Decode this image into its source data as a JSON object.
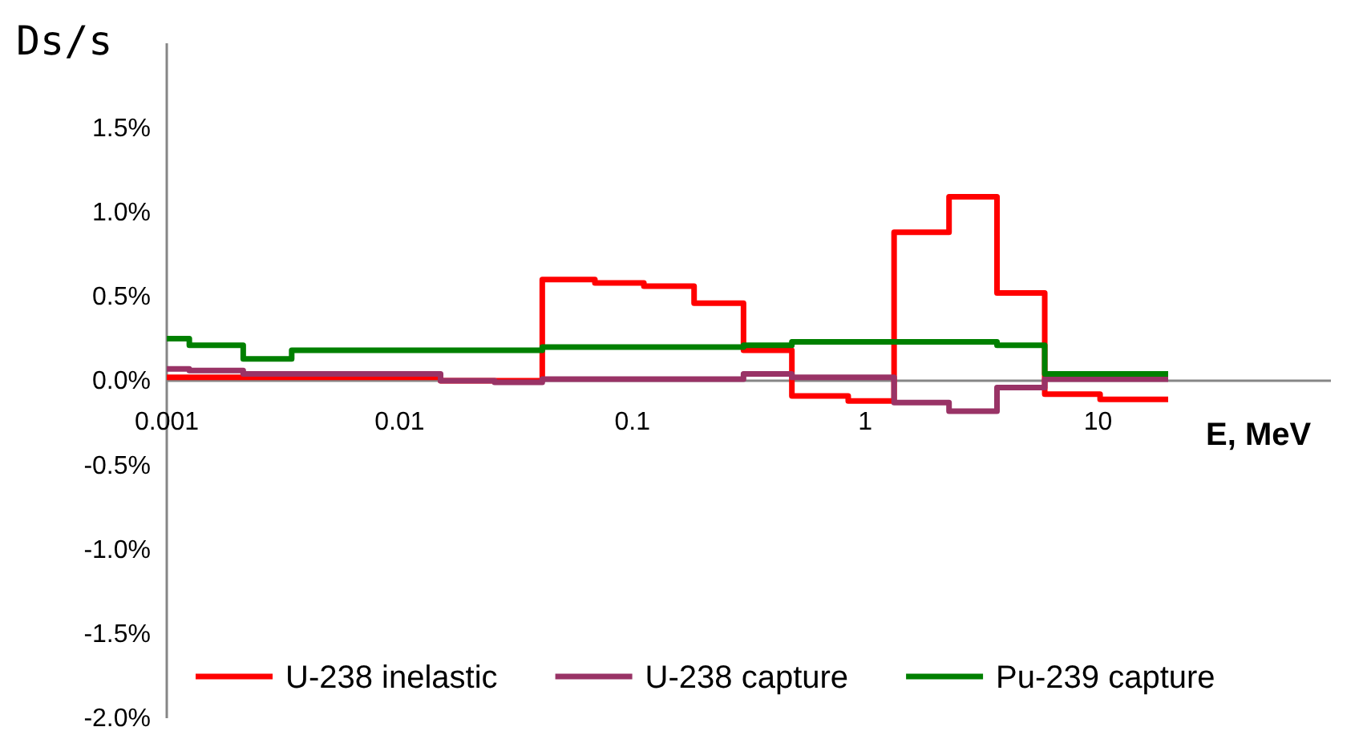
{
  "chart_data": {
    "type": "step",
    "ylabel": "Ds/s",
    "xlabel": "E, MeV",
    "log": "x",
    "xlim": [
      0.001,
      100
    ],
    "xticks": [
      {
        "value": 0.001,
        "label": "0.001"
      },
      {
        "value": 0.01,
        "label": "0.01"
      },
      {
        "value": 0.1,
        "label": "0.1"
      },
      {
        "value": 1,
        "label": "1"
      },
      {
        "value": 10,
        "label": "10"
      }
    ],
    "ylim": [
      -2,
      2
    ],
    "yticks": [
      {
        "value": -2,
        "label": "-2.0%"
      },
      {
        "value": -1.5,
        "label": "-1.5%"
      },
      {
        "value": -1,
        "label": "-1.0%"
      },
      {
        "value": -0.5,
        "label": "-0.5%"
      },
      {
        "value": 0,
        "label": "0.0%"
      },
      {
        "value": 0.5,
        "label": "0.5%"
      },
      {
        "value": 1,
        "label": "1.0%"
      },
      {
        "value": 1.5,
        "label": "1.5%"
      }
    ],
    "grid": false,
    "legend": "bottom",
    "series": [
      {
        "name": "U-238 inelastic",
        "color": "#ff0000",
        "x": [
          0.001,
          0.015,
          0.041,
          0.069,
          0.112,
          0.184,
          0.3,
          0.484,
          0.845,
          1.33,
          2.29,
          3.68,
          5.9,
          10.2,
          20
        ],
        "values": [
          0.02,
          0.0,
          0.6,
          0.58,
          0.56,
          0.46,
          0.18,
          -0.09,
          -0.12,
          0.88,
          1.09,
          0.52,
          -0.08,
          -0.11,
          -0.11
        ]
      },
      {
        "name": "U-238 capture",
        "color": "#993366",
        "x": [
          0.001,
          0.00125,
          0.00213,
          0.015,
          0.0256,
          0.041,
          0.3,
          0.484,
          1.33,
          2.29,
          3.68,
          5.9,
          20
        ],
        "values": [
          0.07,
          0.06,
          0.04,
          0.0,
          -0.01,
          0.01,
          0.04,
          0.02,
          -0.13,
          -0.18,
          -0.04,
          0.01,
          0.01
        ]
      },
      {
        "name": "Pu-239 capture",
        "color": "#008000",
        "x": [
          0.001,
          0.00125,
          0.00213,
          0.00344,
          0.041,
          0.3,
          0.484,
          3.68,
          5.9,
          20
        ],
        "values": [
          0.25,
          0.21,
          0.13,
          0.18,
          0.2,
          0.21,
          0.23,
          0.21,
          0.04,
          0.04
        ]
      }
    ]
  }
}
